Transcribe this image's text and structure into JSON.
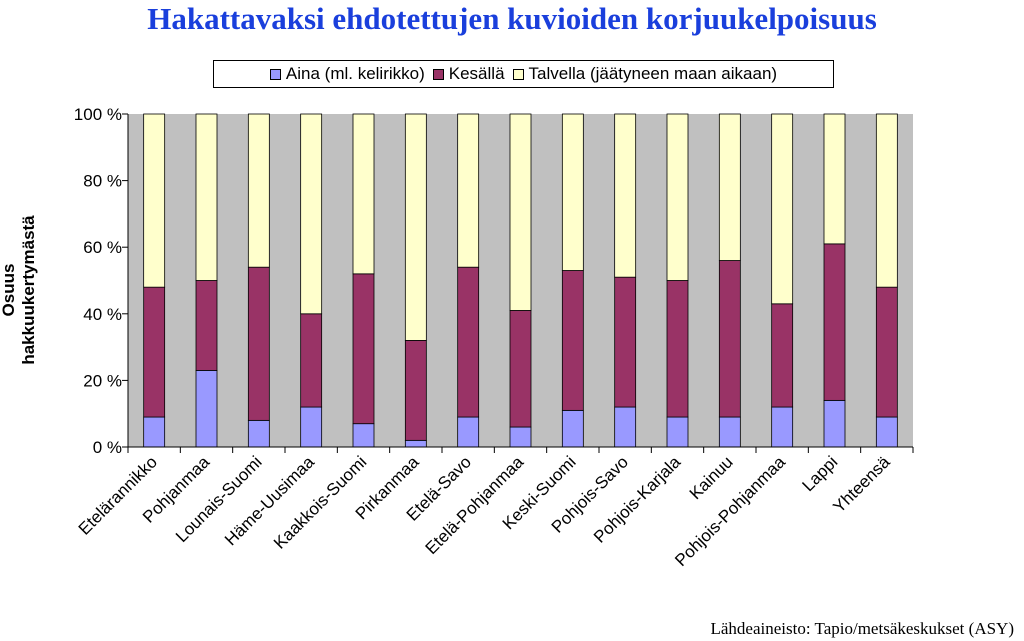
{
  "chart_data": {
    "type": "bar",
    "stacked": true,
    "percent_stacked": true,
    "title": "Hakattavaksi ehdotettujen kuvioiden korjuukelpoisuus",
    "ylabel": "Osuus hakkuukertymästä",
    "xlabel": "",
    "ylim": [
      0,
      100
    ],
    "yticks": [
      "0 %",
      "20 %",
      "40 %",
      "60 %",
      "80 %",
      "100 %"
    ],
    "ytick_values": [
      0,
      20,
      40,
      60,
      80,
      100
    ],
    "grid": false,
    "legend_position": "top",
    "categories": [
      "Etelärannikko",
      "Pohjanmaa",
      "Lounais-Suomi",
      "Häme-Uusimaa",
      "Kaakkois-Suomi",
      "Pirkanmaa",
      "Etelä-Savo",
      "Etelä-Pohjanmaa",
      "Keski-Suomi",
      "Pohjois-Savo",
      "Pohjois-Karjala",
      "Kainuu",
      "Pohjois-Pohjanmaa",
      "Lappi",
      "Yhteensä"
    ],
    "series": [
      {
        "name": "Aina (ml. kelirikko)",
        "color": "#9999ff",
        "values": [
          9,
          23,
          8,
          12,
          7,
          2,
          9,
          6,
          11,
          12,
          9,
          9,
          12,
          14,
          9
        ]
      },
      {
        "name": "Kesällä",
        "color": "#993366",
        "values": [
          39,
          27,
          46,
          28,
          45,
          30,
          45,
          35,
          42,
          39,
          41,
          47,
          31,
          47,
          39
        ]
      },
      {
        "name": "Talvella (jäätyneen maan aikaan)",
        "color": "#ffffcc",
        "values": [
          52,
          50,
          46,
          60,
          48,
          68,
          46,
          59,
          47,
          49,
          50,
          44,
          57,
          39,
          52
        ]
      }
    ],
    "plot_background": "#c0c0c0",
    "source": "Lähdeaineisto: Tapio/metsäkeskukset (ASY)"
  }
}
